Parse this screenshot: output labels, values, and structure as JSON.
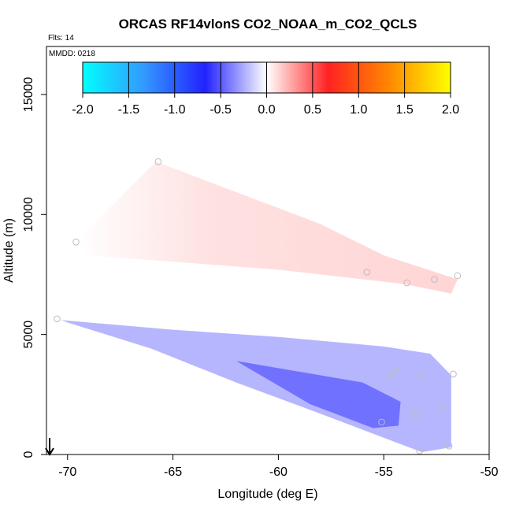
{
  "chart_data": {
    "type": "heatmap",
    "title": "ORCAS RF14vlonS CO2_NOAA_m_CO2_QCLS",
    "flights_note": "Flts: 14",
    "mmdd_note": "MMDD: 0218",
    "xlabel": "Longitude (deg E)",
    "ylabel": "Altitude (m)",
    "xlim": [
      -71,
      -50
    ],
    "ylim": [
      0,
      17000
    ],
    "x_ticks": [
      -70,
      -65,
      -60,
      -55,
      -50
    ],
    "x_tick_labels": [
      "-70",
      "-65",
      "-60",
      "-55",
      "-50"
    ],
    "y_ticks": [
      0,
      5000,
      10000,
      15000
    ],
    "y_tick_labels": [
      "0",
      "5000",
      "10000",
      "15000"
    ],
    "colorbar": {
      "ticks": [
        -2.0,
        -1.5,
        -1.0,
        -0.5,
        0.0,
        0.5,
        1.0,
        1.5,
        2.0
      ],
      "tick_labels": [
        "-2.0",
        "-1.5",
        "-1.0",
        "-0.5",
        "0.0",
        "0.5",
        "1.0",
        "1.5",
        "2.0"
      ],
      "range": [
        -2.0,
        2.0
      ],
      "colors": [
        "#00ffff",
        "#3399ff",
        "#2222ff",
        "#ffffff",
        "#ff2222",
        "#ff8800",
        "#ffff00"
      ]
    },
    "regions": [
      {
        "name": "upper-positive-region",
        "value": 0.15,
        "polygon": [
          [
            -69.6,
            8900
          ],
          [
            -65.8,
            12200
          ],
          [
            -58.0,
            9600
          ],
          [
            -55.0,
            8300
          ],
          [
            -51.5,
            7300
          ],
          [
            -51.8,
            6700
          ],
          [
            -54.0,
            7100
          ],
          [
            -60.0,
            7700
          ],
          [
            -69.0,
            8300
          ]
        ]
      },
      {
        "name": "lower-negative-region",
        "value": -0.22,
        "polygon": [
          [
            -70.3,
            5600
          ],
          [
            -65.0,
            5200
          ],
          [
            -60.0,
            4900
          ],
          [
            -55.0,
            4500
          ],
          [
            -52.8,
            4200
          ],
          [
            -51.8,
            3300
          ],
          [
            -51.8,
            300
          ],
          [
            -53.2,
            100
          ],
          [
            -55.0,
            700
          ],
          [
            -58.0,
            1700
          ],
          [
            -62.0,
            3000
          ],
          [
            -66.0,
            4400
          ],
          [
            -70.0,
            5500
          ]
        ]
      },
      {
        "name": "lower-strong-negative-core",
        "value": -0.6,
        "polygon": [
          [
            -62.0,
            3900
          ],
          [
            -56.0,
            3000
          ],
          [
            -54.2,
            2200
          ],
          [
            -54.3,
            1200
          ],
          [
            -55.5,
            1100
          ],
          [
            -58.5,
            2100
          ]
        ]
      }
    ],
    "sample_points": [
      {
        "x": -69.6,
        "y": 8850
      },
      {
        "x": -65.7,
        "y": 12200
      },
      {
        "x": -70.5,
        "y": 5650
      },
      {
        "x": -55.8,
        "y": 7600
      },
      {
        "x": -53.9,
        "y": 7150
      },
      {
        "x": -52.6,
        "y": 7300
      },
      {
        "x": -51.5,
        "y": 7450
      },
      {
        "x": -54.7,
        "y": 3300
      },
      {
        "x": -54.4,
        "y": 3500
      },
      {
        "x": -53.2,
        "y": 3350
      },
      {
        "x": -51.7,
        "y": 3350
      },
      {
        "x": -53.5,
        "y": 1700
      },
      {
        "x": -52.2,
        "y": 2000
      },
      {
        "x": -55.1,
        "y": 1350
      },
      {
        "x": -53.3,
        "y": 150
      },
      {
        "x": -51.9,
        "y": 350
      }
    ]
  }
}
